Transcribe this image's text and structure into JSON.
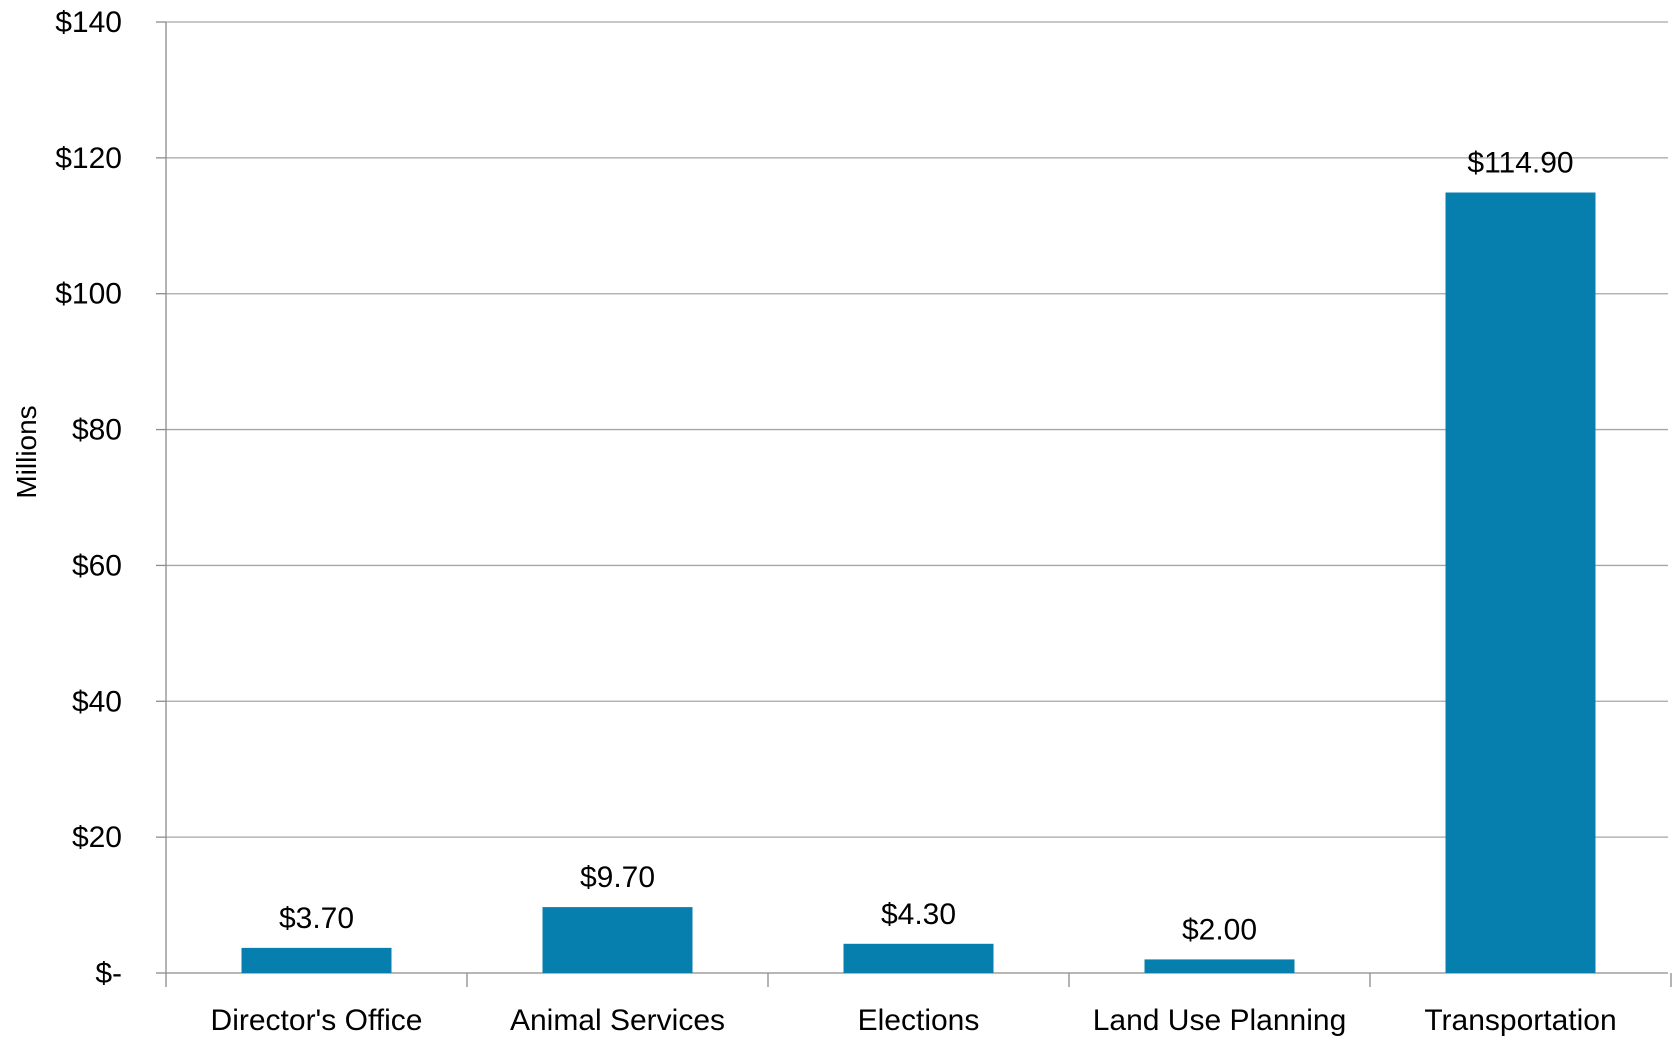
{
  "chart_data": {
    "type": "bar",
    "title": "",
    "xlabel": "",
    "ylabel": "Millions",
    "categories": [
      "Director's Office",
      "Animal Services",
      "Elections",
      "Land Use Planning",
      "Transportation"
    ],
    "values": [
      3.7,
      9.7,
      4.3,
      2.0,
      114.9
    ],
    "value_labels": [
      "$3.70",
      "$9.70",
      "$4.30",
      "$2.00",
      "$114.90"
    ],
    "ylim": [
      0,
      140
    ],
    "yticks": [
      0,
      20,
      40,
      60,
      80,
      100,
      120,
      140
    ],
    "ytick_labels": [
      "$-",
      "$20",
      "$40",
      "$60",
      "$80",
      "$100",
      "$120",
      "$140"
    ],
    "grid": true,
    "legend": "none",
    "bar_color": "#077FAE",
    "grid_color": "#a6a6a6",
    "axis_color": "#8c8c8c"
  }
}
